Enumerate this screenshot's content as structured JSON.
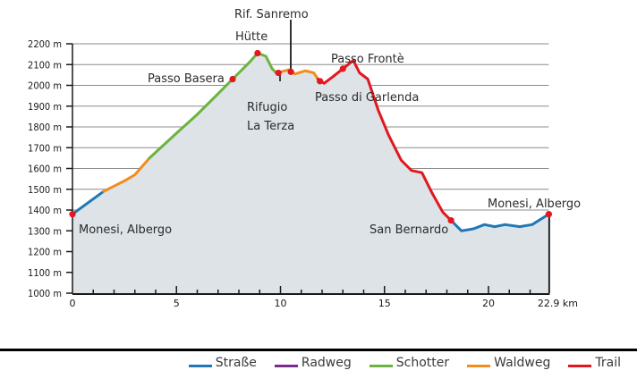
{
  "chart_data": {
    "type": "area",
    "title": "",
    "xlabel": "km",
    "ylabel": "m",
    "xlim": [
      0,
      22.9
    ],
    "ylim": [
      1000,
      2200
    ],
    "grid": true,
    "x_ticks": [
      0,
      5,
      10,
      15,
      20,
      22.9
    ],
    "x_tick_labels": [
      "0",
      "5",
      "10",
      "15",
      "20",
      "22.9 km"
    ],
    "y_ticks": [
      1000,
      1100,
      1200,
      1300,
      1400,
      1500,
      1600,
      1700,
      1800,
      1900,
      2000,
      2100,
      2200
    ],
    "y_tick_labels": [
      "1000 m",
      "1100 m",
      "1200 m",
      "1300 m",
      "1400 m",
      "1500 m",
      "1600 m",
      "1700 m",
      "1800 m",
      "1900 m",
      "2000 m",
      "2100 m",
      "2200 m"
    ],
    "segments": [
      {
        "surface": "Straße",
        "points": [
          [
            0,
            1380
          ],
          [
            1.5,
            1490
          ]
        ]
      },
      {
        "surface": "Waldweg",
        "points": [
          [
            1.5,
            1490
          ],
          [
            2.5,
            1540
          ],
          [
            3.0,
            1570
          ],
          [
            3.7,
            1650
          ]
        ]
      },
      {
        "surface": "Schotter",
        "points": [
          [
            3.7,
            1650
          ],
          [
            5.0,
            1770
          ],
          [
            6.0,
            1860
          ],
          [
            7.0,
            1960
          ],
          [
            7.7,
            2030
          ],
          [
            8.5,
            2110
          ],
          [
            8.9,
            2155
          ],
          [
            9.3,
            2140
          ],
          [
            9.6,
            2080
          ],
          [
            9.8,
            2060
          ]
        ]
      },
      {
        "surface": "Trail",
        "points": [
          [
            9.8,
            2060
          ],
          [
            10.0,
            2065
          ]
        ]
      },
      {
        "surface": "Waldweg",
        "points": [
          [
            10.0,
            2065
          ],
          [
            10.4,
            2075
          ],
          [
            10.7,
            2055
          ],
          [
            11.2,
            2070
          ],
          [
            11.6,
            2060
          ],
          [
            11.8,
            2030
          ]
        ]
      },
      {
        "surface": "Trail",
        "points": [
          [
            11.8,
            2030
          ],
          [
            12.1,
            2010
          ],
          [
            12.5,
            2040
          ],
          [
            13.0,
            2080
          ],
          [
            13.5,
            2120
          ],
          [
            13.8,
            2060
          ],
          [
            14.2,
            2030
          ],
          [
            14.7,
            1880
          ],
          [
            15.2,
            1760
          ],
          [
            15.8,
            1640
          ],
          [
            16.3,
            1590
          ],
          [
            16.8,
            1580
          ],
          [
            17.3,
            1480
          ],
          [
            17.8,
            1390
          ],
          [
            18.2,
            1350
          ]
        ]
      },
      {
        "surface": "Straße",
        "points": [
          [
            18.2,
            1350
          ],
          [
            18.7,
            1300
          ],
          [
            19.3,
            1310
          ],
          [
            19.8,
            1330
          ],
          [
            20.3,
            1320
          ],
          [
            20.8,
            1330
          ],
          [
            21.5,
            1320
          ],
          [
            22.1,
            1330
          ],
          [
            22.9,
            1380
          ]
        ]
      }
    ],
    "waypoints": [
      {
        "name": "Monesi, Albergo",
        "km": 0,
        "elevation": 1380
      },
      {
        "name": "Passo Basera",
        "km": 7.7,
        "elevation": 2030
      },
      {
        "name": "Hütte",
        "km": 8.9,
        "elevation": 2155
      },
      {
        "name": "Rifugio La Terza",
        "km": 9.9,
        "elevation": 2060
      },
      {
        "name": "Rif. Sanremo",
        "km": 10.5,
        "elevation": 2065
      },
      {
        "name": "Passo di Garlenda",
        "km": 11.9,
        "elevation": 2020
      },
      {
        "name": "Passo Frontè",
        "km": 13.0,
        "elevation": 2080
      },
      {
        "name": "San Bernardo",
        "km": 18.2,
        "elevation": 1350
      },
      {
        "name": "Monesi, Albergo",
        "km": 22.9,
        "elevation": 1380
      }
    ],
    "legend": [
      {
        "label": "Straße",
        "color": "#1f78b4"
      },
      {
        "label": "Radweg",
        "color": "#7b2d8e"
      },
      {
        "label": "Schotter",
        "color": "#6cb33f"
      },
      {
        "label": "Waldweg",
        "color": "#f28c1e"
      },
      {
        "label": "Trail",
        "color": "#e2171f"
      }
    ],
    "legend_position": "bottom-right"
  },
  "labels": {
    "start": "Monesi, Albergo",
    "passo_basera": "Passo Basera",
    "huette": "Hütte",
    "rifugio_line1": "Rifugio",
    "rifugio_line2": "La Terza",
    "rif_sanremo": "Rif. Sanremo",
    "passo_garlenda": "Passo di Garlenda",
    "passo_fronte": "Passo Frontè",
    "san_bernardo": "San Bernardo",
    "end": "Monesi, Albergo"
  },
  "colors": {
    "area_fill": "#dde3e7",
    "grid": "#8c8c8c",
    "axis": "#1a1a1a",
    "marker": "#e2171f"
  }
}
